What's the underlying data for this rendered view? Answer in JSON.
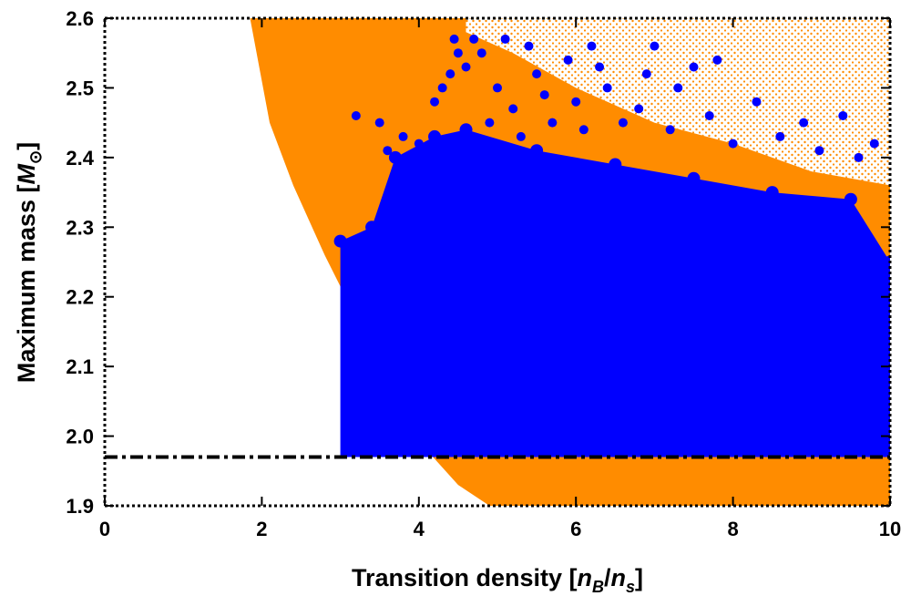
{
  "chart_data": {
    "type": "scatter",
    "title": "",
    "xlabel": "Transition density [n_B/n_s]",
    "xlabel_parts": {
      "prefix": "Transition density [",
      "num": "n",
      "num_sub": "B",
      "slash": "/",
      "den": "n",
      "den_sub": "s",
      "suffix": "]"
    },
    "ylabel": "Maximum mass [M_⊙]",
    "ylabel_parts": {
      "prefix": "Maximum mass [",
      "sym": "M",
      "sym_sub": "⊙",
      "suffix": "]"
    },
    "xlim": [
      0,
      10
    ],
    "ylim": [
      1.9,
      2.6
    ],
    "x_ticks": [
      "0",
      "2",
      "4",
      "6",
      "8",
      "10"
    ],
    "y_ticks": [
      "1.9",
      "2.0",
      "2.1",
      "2.2",
      "2.3",
      "2.4",
      "2.5",
      "2.6"
    ],
    "grid": false,
    "reference_line": {
      "y": 1.97,
      "style": "dash-dot",
      "color": "#000000"
    },
    "series": [
      {
        "color": "#ff8c00",
        "marker": "small dot",
        "region_boundary": [
          [
            1.85,
            2.6
          ],
          [
            2.1,
            2.45
          ],
          [
            2.4,
            2.36
          ],
          [
            2.8,
            2.26
          ],
          [
            3.2,
            2.17
          ],
          [
            3.5,
            2.1
          ],
          [
            3.8,
            2.04
          ],
          [
            4.1,
            1.98
          ],
          [
            4.5,
            1.93
          ],
          [
            4.9,
            1.9
          ],
          [
            10,
            1.9
          ],
          [
            10,
            2.6
          ]
        ],
        "sparse_region_start_x": 4.6
      },
      {
        "color": "#0000ff",
        "marker": "dot",
        "region_boundary": [
          [
            3.0,
            1.97
          ],
          [
            10,
            1.97
          ],
          [
            10,
            2.25
          ],
          [
            9.5,
            2.34
          ],
          [
            8.5,
            2.35
          ],
          [
            7.5,
            2.37
          ],
          [
            6.5,
            2.39
          ],
          [
            5.5,
            2.41
          ],
          [
            4.6,
            2.44
          ],
          [
            4.2,
            2.43
          ],
          [
            3.7,
            2.4
          ],
          [
            3.4,
            2.3
          ],
          [
            3.0,
            2.28
          ]
        ],
        "outliers": [
          [
            3.2,
            2.46
          ],
          [
            3.5,
            2.45
          ],
          [
            3.6,
            2.41
          ],
          [
            3.8,
            2.43
          ],
          [
            4.0,
            2.42
          ],
          [
            4.2,
            2.48
          ],
          [
            4.3,
            2.5
          ],
          [
            4.4,
            2.52
          ],
          [
            4.5,
            2.55
          ],
          [
            4.45,
            2.57
          ],
          [
            4.6,
            2.53
          ],
          [
            4.7,
            2.57
          ],
          [
            4.8,
            2.55
          ],
          [
            5.0,
            2.5
          ],
          [
            5.1,
            2.57
          ],
          [
            5.2,
            2.47
          ],
          [
            5.4,
            2.56
          ],
          [
            5.5,
            2.52
          ],
          [
            5.6,
            2.49
          ],
          [
            5.7,
            2.45
          ],
          [
            5.9,
            2.54
          ],
          [
            6.0,
            2.48
          ],
          [
            6.1,
            2.44
          ],
          [
            6.2,
            2.56
          ],
          [
            6.3,
            2.53
          ],
          [
            6.4,
            2.5
          ],
          [
            6.6,
            2.45
          ],
          [
            6.8,
            2.47
          ],
          [
            7.0,
            2.56
          ],
          [
            7.2,
            2.44
          ],
          [
            7.3,
            2.5
          ],
          [
            7.5,
            2.53
          ],
          [
            7.7,
            2.46
          ],
          [
            7.8,
            2.54
          ],
          [
            8.0,
            2.42
          ],
          [
            8.3,
            2.48
          ],
          [
            8.6,
            2.43
          ],
          [
            8.9,
            2.45
          ],
          [
            9.1,
            2.41
          ],
          [
            9.4,
            2.46
          ],
          [
            9.6,
            2.4
          ],
          [
            9.8,
            2.42
          ],
          [
            6.9,
            2.52
          ],
          [
            5.3,
            2.43
          ],
          [
            4.9,
            2.45
          ]
        ]
      }
    ]
  }
}
